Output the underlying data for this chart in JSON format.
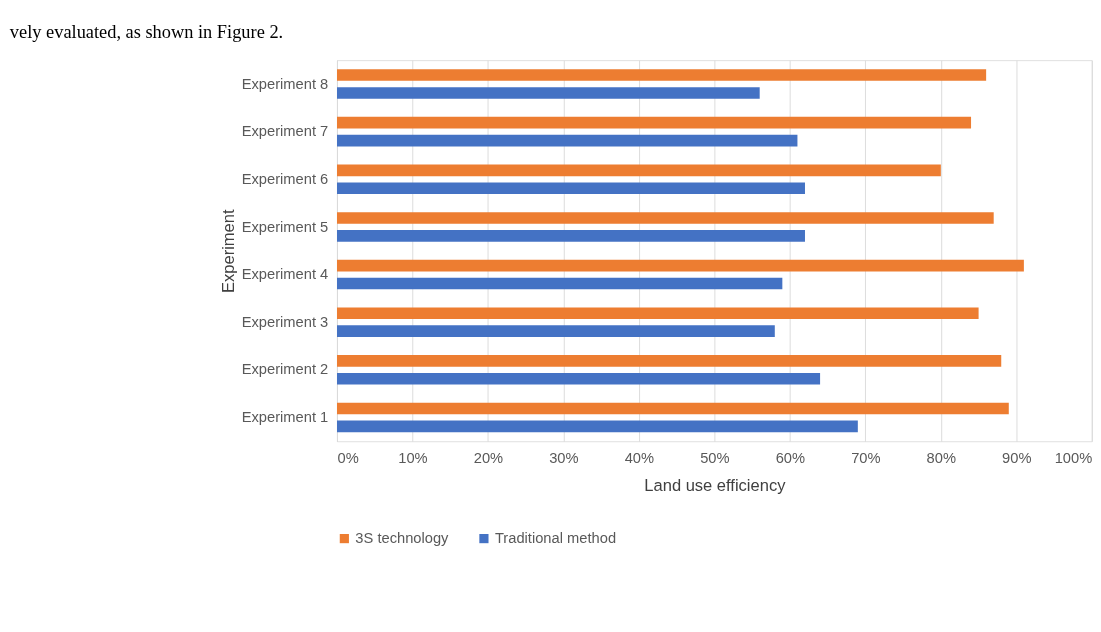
{
  "chart_data": {
    "type": "bar",
    "orientation": "horizontal",
    "xlabel": "Land use efficiency",
    "ylabel": "Experiment",
    "categories": [
      "Experiment 8",
      "Experiment 7",
      "Experiment 6",
      "Experiment 5",
      "Experiment 4",
      "Experiment 3",
      "Experiment 2",
      "Experiment 1"
    ],
    "series": [
      {
        "name": "3S technology",
        "color": "#ed7d31",
        "values": [
          86,
          84,
          80,
          87,
          91,
          85,
          88,
          89
        ]
      },
      {
        "name": "Traditional method",
        "color": "#4472c4",
        "values": [
          56,
          61,
          62,
          62,
          59,
          58,
          64,
          69
        ]
      }
    ],
    "xlim": [
      0,
      100
    ],
    "xticks": [
      {
        "value": 0,
        "label": "0%"
      },
      {
        "value": 10,
        "label": "10%"
      },
      {
        "value": 20,
        "label": "20%"
      },
      {
        "value": 30,
        "label": "30%"
      },
      {
        "value": 40,
        "label": "40%"
      },
      {
        "value": 50,
        "label": "50%"
      },
      {
        "value": 60,
        "label": "60%"
      },
      {
        "value": 70,
        "label": "70%"
      },
      {
        "value": 80,
        "label": "80%"
      },
      {
        "value": 90,
        "label": "90%"
      },
      {
        "value": 100,
        "label": "100%"
      }
    ],
    "grid": "x",
    "legend": "bottom",
    "annotations": [
      "vely evaluated, as shown in Figure 2."
    ]
  }
}
